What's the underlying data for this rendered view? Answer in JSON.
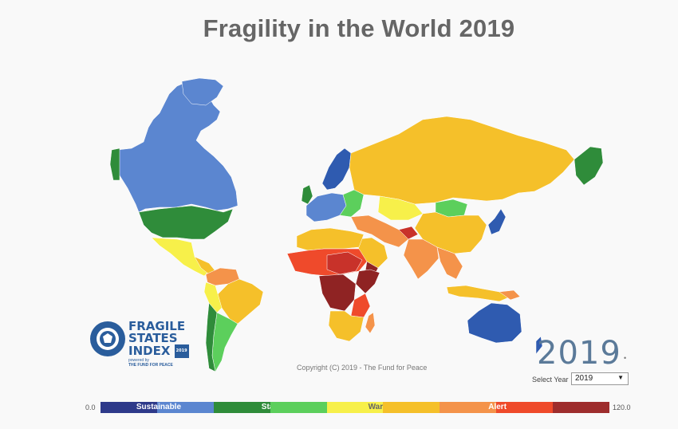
{
  "title": "Fragility in the World 2019",
  "year_display": "2019",
  "mark": "•",
  "select": {
    "label": "Select Year",
    "value": "2019"
  },
  "copyright": "Copyright (C) 2019 - The Fund for Peace",
  "logo": {
    "line1": "FRAGILE",
    "line2": "STATES",
    "line3": "INDEX",
    "badge": "2019",
    "powered": "powered by",
    "org": "THE FUND FOR PEACE"
  },
  "legend": {
    "min": "0.0",
    "max": "120.0",
    "segments": [
      {
        "color": "#2e3a8a"
      },
      {
        "color": "#5b86d0"
      },
      {
        "color": "#2f8c3a"
      },
      {
        "color": "#5ccf5c"
      },
      {
        "color": "#f7f04a"
      },
      {
        "color": "#f5c02a"
      },
      {
        "color": "#f4934a"
      },
      {
        "color": "#ef4a2b"
      },
      {
        "color": "#9e2d2d"
      }
    ],
    "labels": [
      "Sustainable",
      "Stable",
      "Warning",
      "Alert"
    ]
  },
  "categories": {
    "sustainable": "#5b86d0",
    "very_sustainable": "#2f5bb0",
    "stable": "#2f8c3a",
    "stable_light": "#5ccf5c",
    "warning_low": "#f7f04a",
    "warning": "#f5c02a",
    "elevated": "#f4934a",
    "alert": "#ef4a2b",
    "high_alert": "#c8322a",
    "very_high_alert": "#8f2323"
  }
}
